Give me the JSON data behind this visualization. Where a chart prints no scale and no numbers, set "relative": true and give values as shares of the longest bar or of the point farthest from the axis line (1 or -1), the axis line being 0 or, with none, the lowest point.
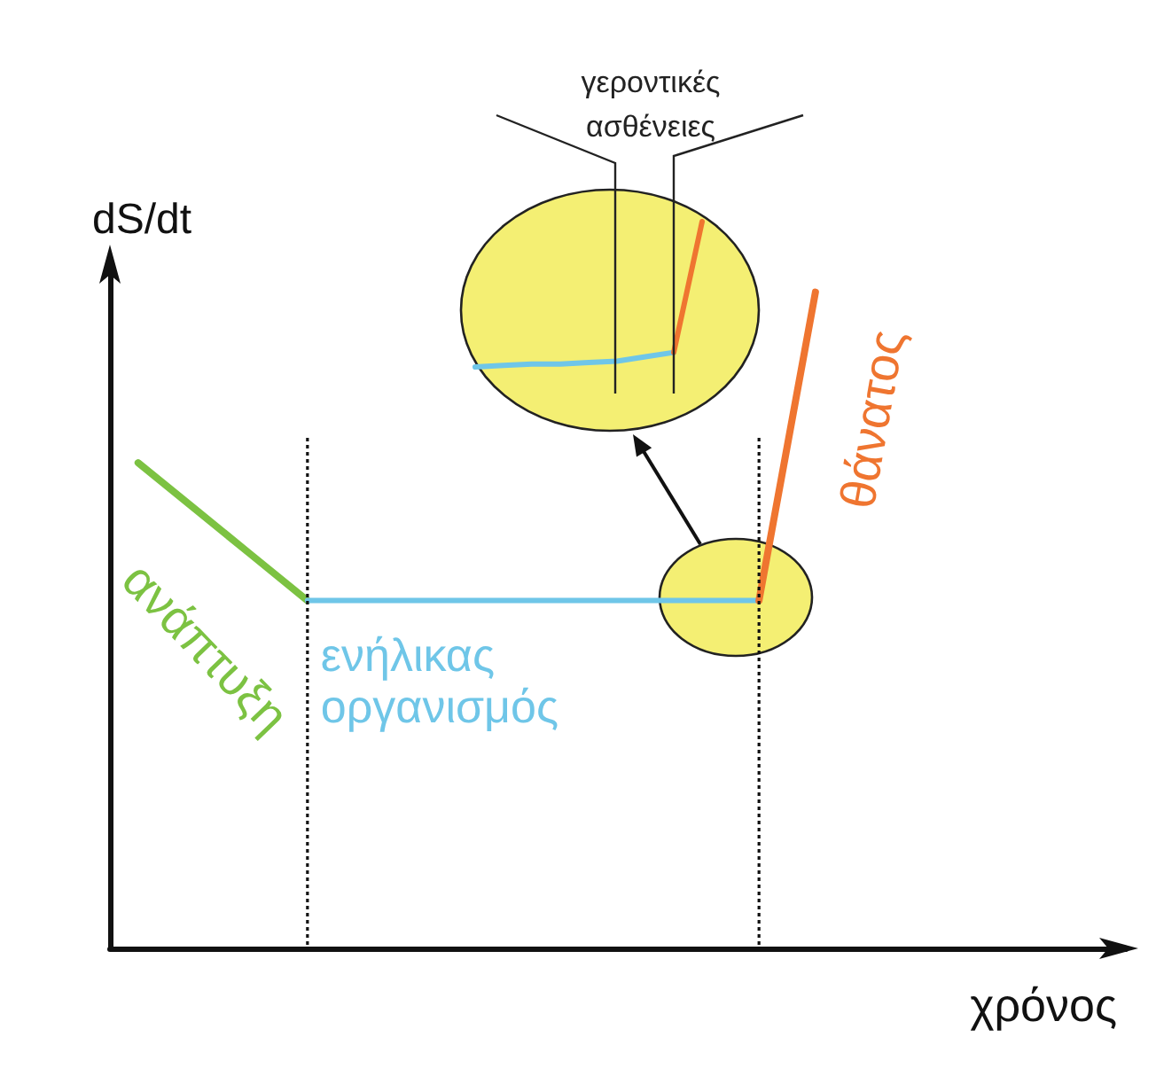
{
  "chart_data": [
    {
      "type": "line",
      "xlabel": "χρόνος",
      "ylabel": "dS/dt",
      "relative": true,
      "marker": "none",
      "categories": [
        null,
        null,
        null,
        null,
        null,
        null,
        null,
        null,
        null,
        null,
        null,
        null,
        null,
        null,
        null,
        null,
        null,
        null
      ],
      "series": [
        {
          "name": "ανάπτυξη",
          "color": "#7cc242",
          "values": [
            0.74,
            0.67,
            0.6,
            0.53,
            null,
            null,
            null,
            null,
            null,
            null,
            null,
            null,
            null,
            null,
            null,
            null,
            null,
            null
          ]
        },
        {
          "name": "ενήλικας οργανισμός",
          "color": "#6fc6e8",
          "values": [
            null,
            null,
            null,
            0.53,
            0.53,
            0.53,
            0.53,
            0.53,
            0.53,
            0.53,
            0.53,
            0.53,
            null,
            null,
            null,
            null,
            null,
            null
          ]
        },
        {
          "name": "θάνατος",
          "color": "#ef7530",
          "values": [
            null,
            null,
            null,
            null,
            null,
            null,
            null,
            null,
            null,
            null,
            null,
            0.53,
            1,
            null,
            null,
            null,
            null,
            null
          ]
        }
      ]
    },
    {
      "type": "line",
      "relative": true,
      "marker": "none",
      "categories": [
        null,
        null,
        null,
        null,
        null,
        null,
        null,
        null,
        null
      ],
      "series": [
        {
          "color": "#6fc6e8",
          "values": [
            0,
            0.01,
            0.02,
            0.02,
            0.03,
            0.04,
            0.07,
            0.1,
            null
          ]
        },
        {
          "color": "#ef7530",
          "values": [
            null,
            null,
            null,
            null,
            null,
            null,
            null,
            0.1,
            1
          ]
        }
      ],
      "annotations": [
        "γεροντικές ασθένειες"
      ]
    }
  ]
}
